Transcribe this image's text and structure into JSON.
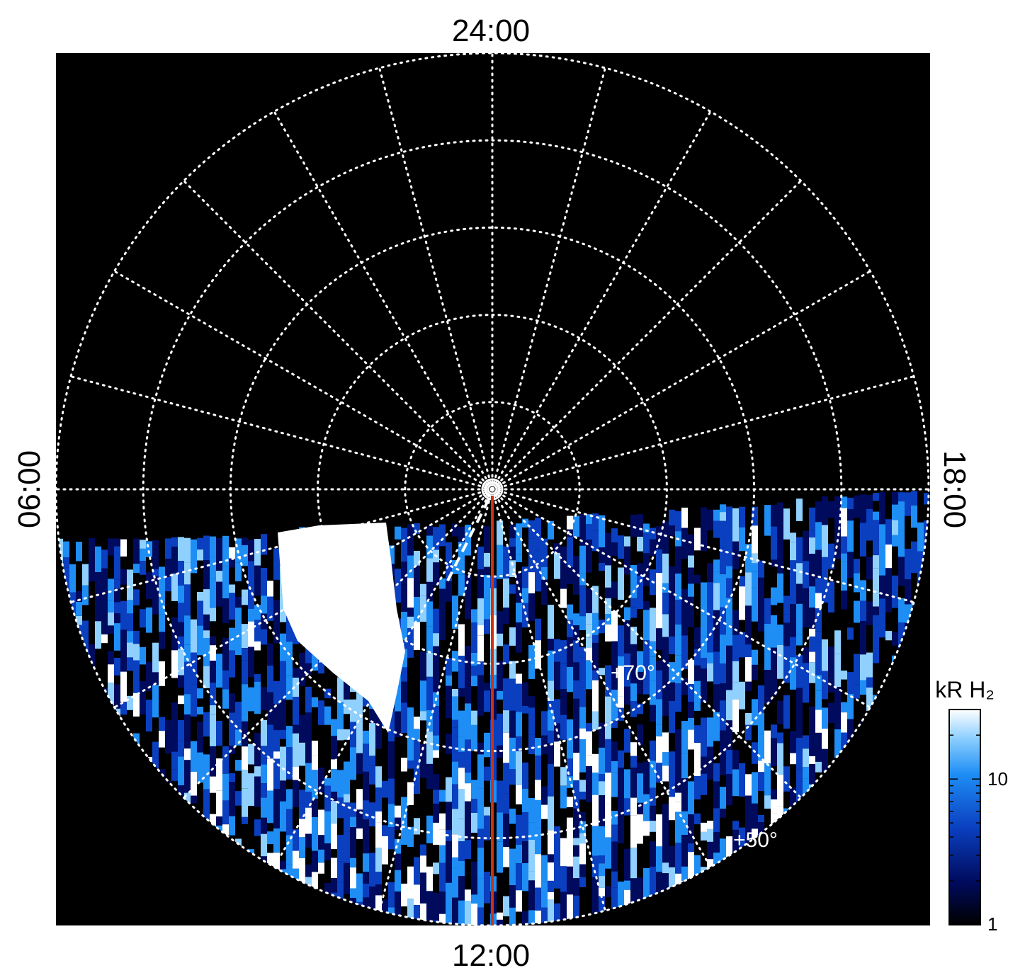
{
  "chart_data": {
    "type": "heatmap",
    "projection": "polar",
    "local_time_labels": {
      "top": "24:00",
      "bottom": "12:00",
      "left": "06:00",
      "right": "18:00"
    },
    "latitude_labels": [
      "+70°",
      "+50°"
    ],
    "latitude_rings_deg": [
      90,
      80,
      70,
      60,
      50,
      40
    ],
    "colorbar": {
      "label": "kR H₂",
      "scale": "log",
      "range": [
        1,
        30
      ],
      "tick_labels": [
        "10",
        "1"
      ],
      "colors": [
        "#000000",
        "#000b5e",
        "#0a3fbf",
        "#1e8ef5",
        "#8fd0ff",
        "#ffffff"
      ]
    },
    "grid": true,
    "colors": {
      "background": "#000000",
      "grid": "#ffffff",
      "meridian": "#cc3311",
      "dashed_track": "#ffffff"
    }
  }
}
